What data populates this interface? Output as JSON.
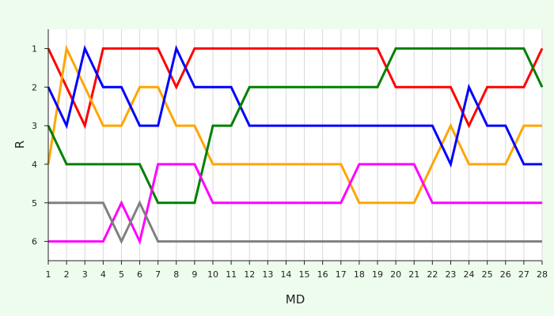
{
  "chart_data": {
    "type": "line",
    "title": "",
    "xlabel": "MD",
    "ylabel": "R",
    "x": [
      1,
      2,
      3,
      4,
      5,
      6,
      7,
      8,
      9,
      10,
      11,
      12,
      13,
      14,
      15,
      16,
      17,
      18,
      19,
      20,
      21,
      22,
      23,
      24,
      25,
      26,
      27,
      28
    ],
    "x_ticks": [
      "1",
      "2",
      "3",
      "4",
      "5",
      "6",
      "7",
      "8",
      "9",
      "10",
      "11",
      "12",
      "13",
      "14",
      "15",
      "16",
      "17",
      "18",
      "19",
      "20",
      "21",
      "22",
      "23",
      "24",
      "25",
      "26",
      "27",
      "28"
    ],
    "y_ticks": [
      "1",
      "2",
      "3",
      "4",
      "5",
      "6"
    ],
    "ylim": [
      6.5,
      0.5
    ],
    "y_inverted": true,
    "grid": "vertical",
    "legend": "none",
    "series": [
      {
        "color": "#ff0000",
        "values": [
          1,
          2,
          3,
          1,
          1,
          1,
          1,
          2,
          1,
          1,
          1,
          1,
          1,
          1,
          1,
          1,
          1,
          1,
          1,
          2,
          2,
          2,
          2,
          3,
          2,
          2,
          2,
          1
        ]
      },
      {
        "color": "#ffa500",
        "values": [
          4,
          1,
          2,
          3,
          3,
          2,
          2,
          3,
          3,
          4,
          4,
          4,
          4,
          4,
          4,
          4,
          4,
          5,
          5,
          5,
          5,
          4,
          3,
          4,
          4,
          4,
          3,
          3
        ]
      },
      {
        "color": "#0000ff",
        "values": [
          2,
          3,
          1,
          2,
          2,
          3,
          3,
          1,
          2,
          2,
          2,
          3,
          3,
          3,
          3,
          3,
          3,
          3,
          3,
          3,
          3,
          3,
          4,
          2,
          3,
          3,
          4,
          4
        ]
      },
      {
        "color": "#008000",
        "values": [
          3,
          4,
          4,
          4,
          4,
          4,
          5,
          5,
          5,
          3,
          3,
          2,
          2,
          2,
          2,
          2,
          2,
          2,
          2,
          1,
          1,
          1,
          1,
          1,
          1,
          1,
          1,
          2
        ]
      },
      {
        "color": "#ff00ff",
        "values": [
          6,
          6,
          6,
          6,
          5,
          6,
          4,
          4,
          4,
          5,
          5,
          5,
          5,
          5,
          5,
          5,
          5,
          4,
          4,
          4,
          4,
          5,
          5,
          5,
          5,
          5,
          5,
          5
        ]
      },
      {
        "color": "#808080",
        "values": [
          5,
          5,
          5,
          5,
          6,
          5,
          6,
          6,
          6,
          6,
          6,
          6,
          6,
          6,
          6,
          6,
          6,
          6,
          6,
          6,
          6,
          6,
          6,
          6,
          6,
          6,
          6,
          6
        ]
      }
    ]
  }
}
